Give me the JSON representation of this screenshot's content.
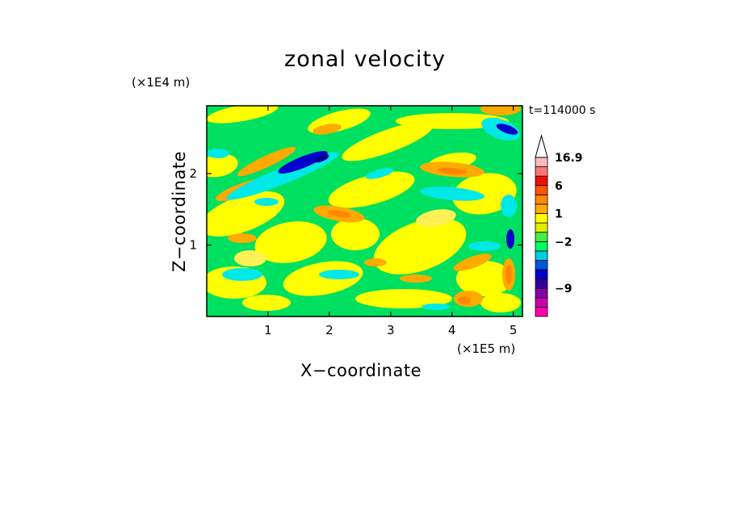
{
  "chart_data": {
    "type": "heatmap",
    "title": "zonal velocity",
    "xlabel": "X−coordinate",
    "ylabel": "Z−coordinate",
    "x_unit_label": "(×1E5 m)",
    "y_unit_label": "(×1E4 m)",
    "timestamp": "t=114000 s",
    "xlim": [
      0,
      5.15
    ],
    "ylim": [
      0,
      2.95
    ],
    "x_ticks": [
      {
        "value": 1,
        "label": "1"
      },
      {
        "value": 2,
        "label": "2"
      },
      {
        "value": 3,
        "label": "3"
      },
      {
        "value": 4,
        "label": "4"
      },
      {
        "value": 5,
        "label": "5"
      }
    ],
    "y_ticks": [
      {
        "value": 1,
        "label": "1"
      },
      {
        "value": 2,
        "label": "2"
      }
    ],
    "colorbar": {
      "placement": "right",
      "levels": [
        {
          "color": "#ff00aa"
        },
        {
          "color": "#cc00aa"
        },
        {
          "color": "#8800aa"
        },
        {
          "color": "#330099"
        },
        {
          "color": "#0000cc"
        },
        {
          "color": "#0055dd"
        },
        {
          "color": "#00ccdd"
        },
        {
          "color": "#00ff66"
        },
        {
          "color": "#44ee44"
        },
        {
          "color": "#ddee00"
        },
        {
          "color": "#ffff00"
        },
        {
          "color": "#ffaa00"
        },
        {
          "color": "#ff8800"
        },
        {
          "color": "#ff5500"
        },
        {
          "color": "#ee1100"
        },
        {
          "color": "#ff7777"
        },
        {
          "color": "#ffbbbb"
        }
      ],
      "tick_labels": [
        {
          "label": "16.9",
          "level": 16
        },
        {
          "label": "6",
          "level": 13
        },
        {
          "label": "1",
          "level": 10
        },
        {
          "label": "−2",
          "level": 7
        },
        {
          "label": "−9",
          "level": 2
        }
      ]
    },
    "field_colors": {
      "green": "#00e060",
      "yellow": "#ffff00",
      "light_yellow": "#fff055",
      "orange": "#ffaa00",
      "dark_orange": "#ff8800",
      "cyan": "#00e8e8",
      "blue": "#0000cc",
      "dark_blue": "#000099"
    }
  }
}
